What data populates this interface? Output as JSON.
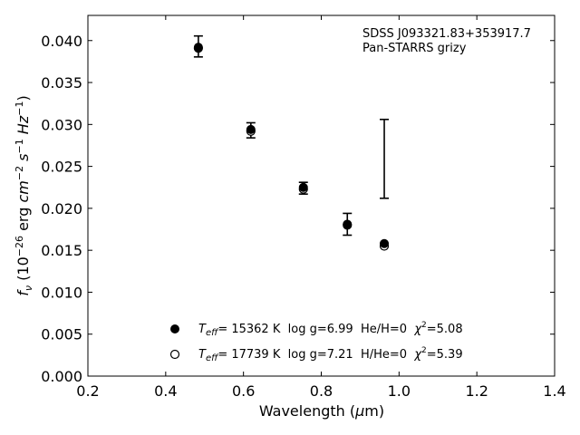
{
  "chart_data": {
    "type": "scatter",
    "xlabel": "Wavelength (μm)",
    "ylabel": "f_ν (10^-26 erg cm^-2 s^-1 Hz^-1)",
    "xlim": [
      0.2,
      1.4
    ],
    "ylim": [
      0.0,
      0.043
    ],
    "x_ticks": [
      "0.2",
      "0.4",
      "0.6",
      "0.8",
      "1.0",
      "1.2",
      "1.4"
    ],
    "y_ticks": [
      "0.000",
      "0.005",
      "0.010",
      "0.015",
      "0.020",
      "0.025",
      "0.030",
      "0.035",
      "0.040"
    ],
    "grid": false,
    "annotations": [
      "SDSS J093321.83+353917.7",
      "Pan-STARRS grizy"
    ],
    "observed": {
      "x": [
        0.484,
        0.619,
        0.754,
        0.867,
        0.962
      ],
      "y": [
        0.0393,
        0.0293,
        0.0224,
        0.0181,
        0.0259
      ],
      "yerr": [
        0.00125,
        0.0009,
        0.0007,
        0.0013,
        0.0047
      ]
    },
    "series": [
      {
        "name": "T_eff= 15362 K  log g=6.99  He/H=0  χ²=5.08",
        "marker": "filled-circle",
        "x": [
          0.484,
          0.619,
          0.754,
          0.867,
          0.962
        ],
        "y": [
          0.0392,
          0.0294,
          0.0225,
          0.0181,
          0.0158
        ]
      },
      {
        "name": "T_eff= 17739 K  log g=7.21  H/He=0  χ²=5.39",
        "marker": "open-circle",
        "x": [
          0.484,
          0.619,
          0.754,
          0.867,
          0.962
        ],
        "y": [
          0.0391,
          0.0292,
          0.0223,
          0.018,
          0.0155
        ]
      }
    ],
    "legend_position": "bottom-center"
  },
  "legend": [
    {
      "teff_prefix": "T",
      "teff_sub": "eff",
      "teff_value": "= 15362 K",
      "params": "  log g=6.99  He/H=0  ",
      "chi": "χ",
      "chi_sup": "2",
      "chi_value": "=5.08"
    },
    {
      "teff_prefix": "T",
      "teff_sub": "eff",
      "teff_value": "= 17739 K",
      "params": "  log g=7.21  H/He=0  ",
      "chi": "χ",
      "chi_sup": "2",
      "chi_value": "=5.39"
    }
  ],
  "ylabel_parts": {
    "f": "f",
    "nu": "ν",
    "open": " (10",
    "exp1": "−26",
    "erg": " erg ",
    "cm": "cm",
    "exp2": "−2",
    "s": " s",
    "exp3": "−1",
    "hz": " Hz",
    "exp4": "−1",
    "close": ")"
  },
  "xlabel_parts": {
    "pre": "Wavelength (",
    "mu": "μ",
    "post": "m)"
  }
}
